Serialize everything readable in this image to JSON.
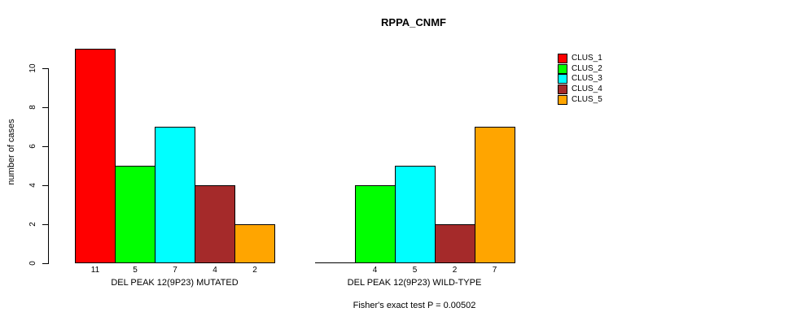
{
  "title": "RPPA_CNMF",
  "chart_data": {
    "type": "bar",
    "title": "RPPA_CNMF",
    "xlabel": "",
    "ylabel": "number of cases",
    "ylim": [
      0,
      11
    ],
    "yticks": [
      0,
      2,
      4,
      6,
      8,
      10
    ],
    "grid": false,
    "legend_position": "right-outside",
    "clusters": [
      {
        "name": "CLUS_1",
        "color": "#ff0000"
      },
      {
        "name": "CLUS_2",
        "color": "#00ff00"
      },
      {
        "name": "CLUS_3",
        "color": "#00ffff"
      },
      {
        "name": "CLUS_4",
        "color": "#a52a2a"
      },
      {
        "name": "CLUS_5",
        "color": "#ffa500"
      }
    ],
    "groups": [
      {
        "label": "DEL PEAK 12(9P23) MUTATED",
        "values": [
          11,
          5,
          7,
          4,
          2
        ],
        "bar_labels": [
          "11",
          "5",
          "7",
          "4",
          "2"
        ]
      },
      {
        "label": "DEL PEAK 12(9P23) WILD-TYPE",
        "values": [
          0,
          4,
          5,
          2,
          7
        ],
        "bar_labels": [
          "",
          "4",
          "5",
          "2",
          "7"
        ]
      }
    ],
    "annotation": "Fisher's exact test P = 0.00502",
    "colors": {
      "axis": "#000000",
      "text": "#000000",
      "background": "#ffffff"
    }
  }
}
